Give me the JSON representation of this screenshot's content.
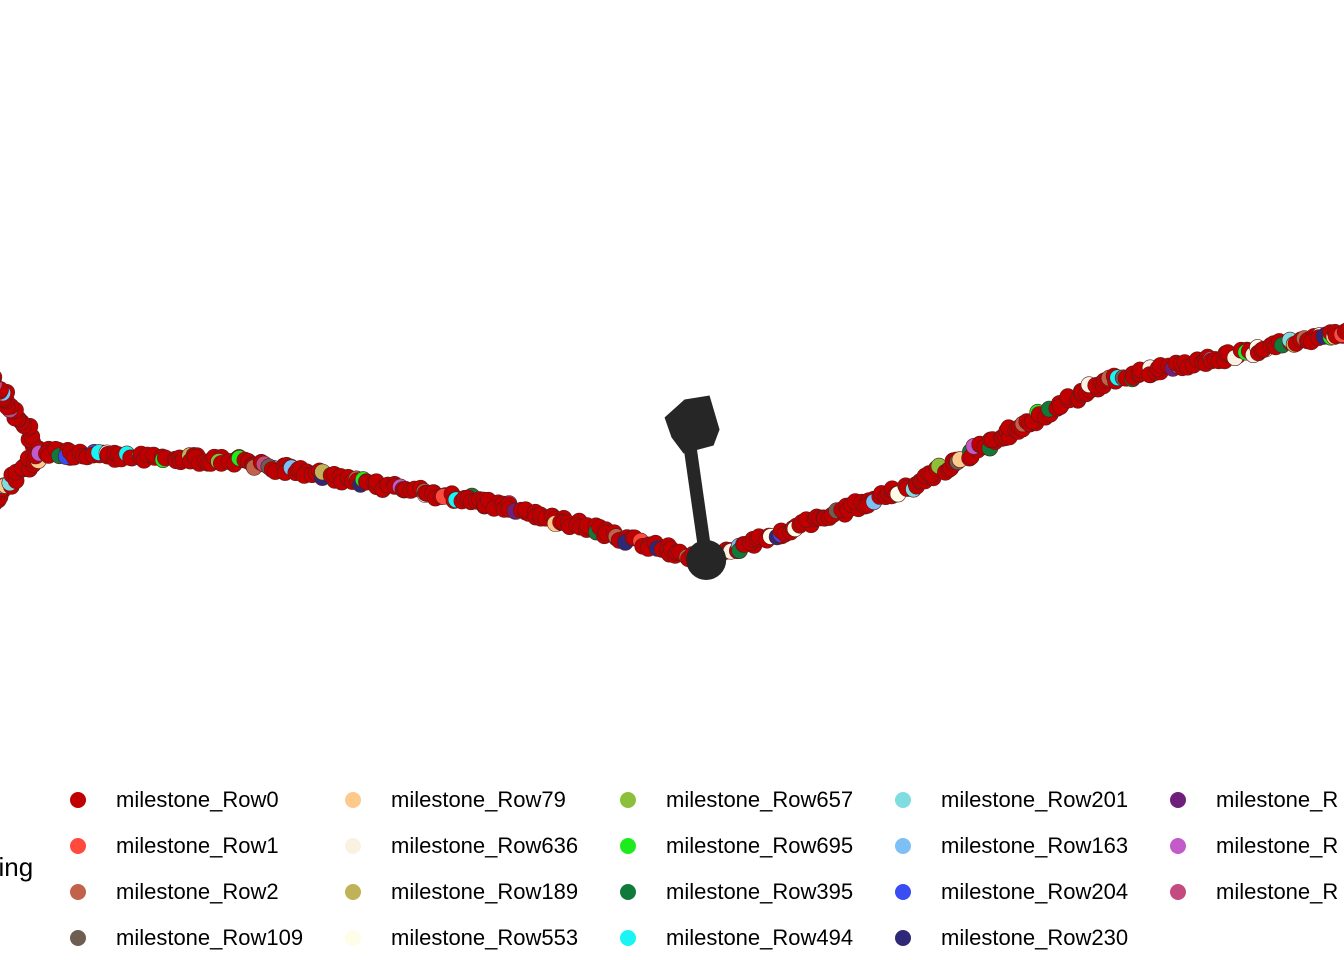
{
  "legend_title": "ping",
  "chart_data": {
    "type": "scatter",
    "title": "",
    "xlabel": "",
    "ylabel": "",
    "grid": false,
    "legend_placement": "bottom",
    "background_point_color": "#C00000",
    "branches": [
      {
        "path": [
          [
            -1.6,
            -2.5
          ],
          [
            -1.3,
            -1.3
          ],
          [
            -0.9,
            0.0
          ],
          [
            -0.6,
            1.2
          ]
        ]
      },
      {
        "path": [
          [
            -0.6,
            1.2
          ],
          [
            -0.9,
            3.0
          ],
          [
            -1.05,
            5.0
          ]
        ]
      },
      {
        "path": [
          [
            -0.6,
            1.2
          ],
          [
            0.0,
            1.1
          ],
          [
            0.8,
            0.6
          ],
          [
            1.4,
            0.0
          ]
        ]
      },
      {
        "path": [
          [
            1.4,
            0.0
          ],
          [
            2.0,
            0.8
          ],
          [
            2.6,
            2.0
          ],
          [
            3.4,
            2.6
          ],
          [
            4.0,
            3.4
          ],
          [
            4.3,
            4.8
          ],
          [
            4.3,
            5.8
          ]
        ]
      },
      {
        "path": [
          [
            4.1,
            1.4
          ],
          [
            4.3,
            0.6
          ],
          [
            4.5,
            -0.4
          ],
          [
            4.5,
            -1.9
          ]
        ]
      }
    ],
    "root": {
      "x": 1.4,
      "y": 0.0
    },
    "arrow": {
      "from": [
        1.4,
        0.0
      ],
      "to": [
        1.35,
        1.5
      ]
    },
    "legend": {
      "columns": [
        [
          {
            "label": "milestone_Row0",
            "color": "#C00000"
          },
          {
            "label": "milestone_Row1",
            "color": "#FF4A3D"
          },
          {
            "label": "milestone_Row2",
            "color": "#C0634A"
          },
          {
            "label": "milestone_Row109",
            "color": "#6E5E52"
          }
        ],
        [
          {
            "label": "milestone_Row79",
            "color": "#FDC98C"
          },
          {
            "label": "milestone_Row636",
            "color": "#FBF1E2"
          },
          {
            "label": "milestone_Row189",
            "color": "#C2B257"
          },
          {
            "label": "milestone_Row553",
            "color": "#FEFDE8"
          }
        ],
        [
          {
            "label": "milestone_Row657",
            "color": "#8DC03A"
          },
          {
            "label": "milestone_Row695",
            "color": "#1EEB1E"
          },
          {
            "label": "milestone_Row395",
            "color": "#117A3B"
          },
          {
            "label": "milestone_Row494",
            "color": "#1AF4F4"
          }
        ],
        [
          {
            "label": "milestone_Row201",
            "color": "#7FDDE0"
          },
          {
            "label": "milestone_Row163",
            "color": "#7EBFF5"
          },
          {
            "label": "milestone_Row204",
            "color": "#394DF2"
          },
          {
            "label": "milestone_Row230",
            "color": "#2F2877"
          }
        ],
        [
          {
            "label": "milestone_R",
            "color": "#6E1F7A"
          },
          {
            "label": "milestone_R",
            "color": "#C35AC9"
          },
          {
            "label": "milestone_R",
            "color": "#C44B80"
          }
        ]
      ]
    }
  }
}
